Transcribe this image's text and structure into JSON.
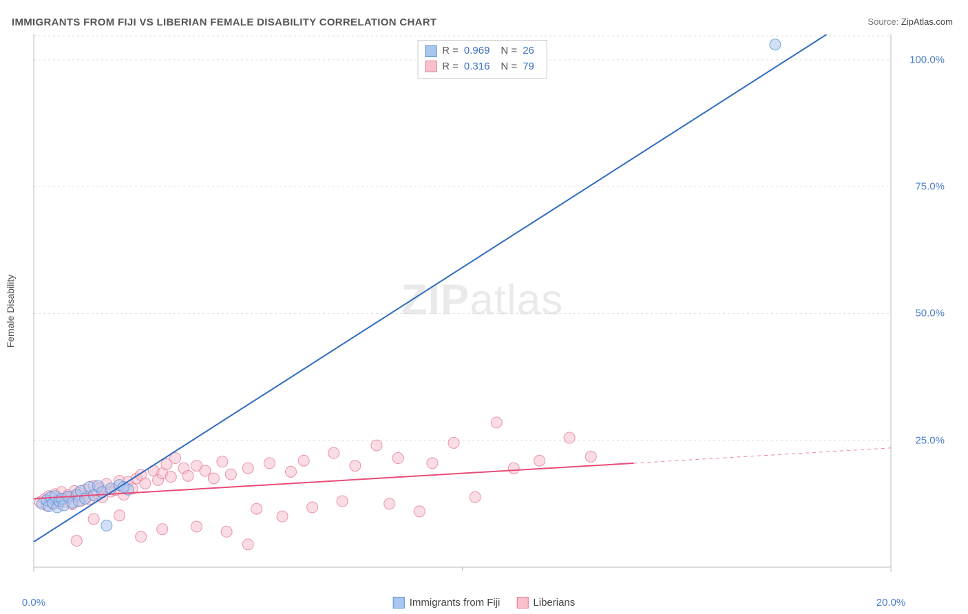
{
  "title": "IMMIGRANTS FROM FIJI VS LIBERIAN FEMALE DISABILITY CORRELATION CHART",
  "source_label": "Source:",
  "source_value": "ZipAtlas.com",
  "watermark_zip": "ZIP",
  "watermark_rest": "atlas",
  "y_axis_label": "Female Disability",
  "chart": {
    "type": "scatter",
    "background_color": "#ffffff",
    "grid_color": "#dddddd",
    "axis_color": "#bbbbbb",
    "tick_color": "#4a7ec9",
    "xlim": [
      0,
      20
    ],
    "ylim": [
      0,
      105
    ],
    "xticks": [
      {
        "v": 0,
        "l": "0.0%"
      },
      {
        "v": 20,
        "l": "20.0%"
      }
    ],
    "yticks": [
      {
        "v": 25,
        "l": "25.0%"
      },
      {
        "v": 50,
        "l": "50.0%"
      },
      {
        "v": 75,
        "l": "75.0%"
      },
      {
        "v": 100,
        "l": "100.0%"
      }
    ],
    "marker_radius": 8,
    "marker_opacity": 0.55,
    "series": [
      {
        "id": "fiji",
        "label": "Immigrants from Fiji",
        "color_fill": "#a9c6ee",
        "color_stroke": "#5b8fd6",
        "line_color": "#2e6bc0",
        "line_width": 2,
        "R": "0.969",
        "N": "26",
        "reg": {
          "x1": 0,
          "y1": 5,
          "x2": 18.5,
          "y2": 105,
          "dash_from": 18.5
        },
        "points": [
          [
            0.2,
            12.5
          ],
          [
            0.3,
            13.2
          ],
          [
            0.35,
            12.0
          ],
          [
            0.4,
            13.8
          ],
          [
            0.45,
            12.6
          ],
          [
            0.5,
            14.0
          ],
          [
            0.55,
            11.8
          ],
          [
            0.6,
            13.0
          ],
          [
            0.65,
            13.5
          ],
          [
            0.7,
            12.2
          ],
          [
            0.8,
            13.9
          ],
          [
            0.9,
            12.7
          ],
          [
            1.0,
            14.3
          ],
          [
            1.05,
            13.0
          ],
          [
            1.1,
            15.0
          ],
          [
            1.2,
            13.5
          ],
          [
            1.3,
            15.8
          ],
          [
            1.4,
            14.2
          ],
          [
            1.5,
            16.0
          ],
          [
            1.6,
            14.8
          ],
          [
            1.8,
            15.5
          ],
          [
            2.0,
            16.2
          ],
          [
            2.2,
            15.3
          ],
          [
            1.7,
            8.2
          ],
          [
            2.1,
            15.8
          ],
          [
            17.3,
            103
          ]
        ]
      },
      {
        "id": "liberians",
        "label": "Liberians",
        "color_fill": "#f6c1cd",
        "color_stroke": "#e67a97",
        "line_color": "#e94b77",
        "line_width": 2,
        "R": "0.316",
        "N": "79",
        "reg": {
          "x1": 0,
          "y1": 13.5,
          "x2": 14,
          "y2": 20.5,
          "dash_from": 14,
          "dx2": 20,
          "dy2": 23.5
        },
        "points": [
          [
            0.15,
            12.8
          ],
          [
            0.25,
            13.4
          ],
          [
            0.3,
            12.2
          ],
          [
            0.35,
            14.0
          ],
          [
            0.4,
            13.0
          ],
          [
            0.45,
            12.5
          ],
          [
            0.5,
            14.4
          ],
          [
            0.55,
            13.2
          ],
          [
            0.6,
            12.6
          ],
          [
            0.65,
            14.8
          ],
          [
            0.7,
            13.5
          ],
          [
            0.75,
            12.9
          ],
          [
            0.8,
            14.2
          ],
          [
            0.85,
            13.7
          ],
          [
            0.9,
            12.4
          ],
          [
            0.95,
            15.0
          ],
          [
            1.0,
            13.9
          ],
          [
            1.05,
            14.6
          ],
          [
            1.1,
            13.1
          ],
          [
            1.2,
            15.3
          ],
          [
            1.25,
            14.0
          ],
          [
            1.3,
            13.4
          ],
          [
            1.4,
            16.0
          ],
          [
            1.5,
            14.5
          ],
          [
            1.55,
            15.6
          ],
          [
            1.6,
            13.8
          ],
          [
            1.7,
            16.4
          ],
          [
            1.8,
            14.9
          ],
          [
            1.9,
            15.2
          ],
          [
            2.0,
            17.0
          ],
          [
            2.1,
            14.3
          ],
          [
            2.2,
            16.8
          ],
          [
            2.3,
            15.5
          ],
          [
            2.4,
            17.5
          ],
          [
            2.5,
            18.2
          ],
          [
            2.6,
            16.5
          ],
          [
            2.8,
            19.0
          ],
          [
            2.9,
            17.2
          ],
          [
            3.0,
            18.5
          ],
          [
            3.1,
            20.3
          ],
          [
            3.2,
            17.8
          ],
          [
            3.3,
            21.5
          ],
          [
            3.5,
            19.5
          ],
          [
            3.6,
            18.0
          ],
          [
            3.8,
            20.0
          ],
          [
            4.0,
            19.0
          ],
          [
            4.2,
            17.5
          ],
          [
            4.4,
            20.8
          ],
          [
            4.6,
            18.3
          ],
          [
            5.0,
            19.5
          ],
          [
            5.2,
            11.5
          ],
          [
            5.5,
            20.5
          ],
          [
            5.8,
            10.0
          ],
          [
            6.0,
            18.8
          ],
          [
            6.3,
            21.0
          ],
          [
            6.5,
            11.8
          ],
          [
            7.0,
            22.5
          ],
          [
            7.2,
            13.0
          ],
          [
            7.5,
            20.0
          ],
          [
            8.0,
            24.0
          ],
          [
            8.3,
            12.5
          ],
          [
            8.5,
            21.5
          ],
          [
            9.0,
            11.0
          ],
          [
            9.3,
            20.5
          ],
          [
            9.8,
            24.5
          ],
          [
            10.3,
            13.8
          ],
          [
            10.8,
            28.5
          ],
          [
            11.2,
            19.5
          ],
          [
            11.8,
            21.0
          ],
          [
            12.5,
            25.5
          ],
          [
            13.0,
            21.8
          ],
          [
            1.0,
            5.2
          ],
          [
            2.5,
            6.0
          ],
          [
            3.0,
            7.5
          ],
          [
            3.8,
            8.0
          ],
          [
            4.5,
            7.0
          ],
          [
            5.0,
            4.5
          ],
          [
            1.4,
            9.5
          ],
          [
            2.0,
            10.2
          ]
        ]
      }
    ]
  },
  "stats_legend": [
    {
      "swatch_fill": "#a9c6ee",
      "swatch_stroke": "#5b8fd6",
      "R": "0.969",
      "N": "26"
    },
    {
      "swatch_fill": "#f6c1cd",
      "swatch_stroke": "#e67a97",
      "R": "0.316",
      "N": "79"
    }
  ],
  "bottom_legend": [
    {
      "swatch_fill": "#a9c6ee",
      "swatch_stroke": "#5b8fd6",
      "label": "Immigrants from Fiji"
    },
    {
      "swatch_fill": "#f6c1cd",
      "swatch_stroke": "#e67a97",
      "label": "Liberians"
    }
  ],
  "labels": {
    "R": "R =",
    "N": "N ="
  }
}
